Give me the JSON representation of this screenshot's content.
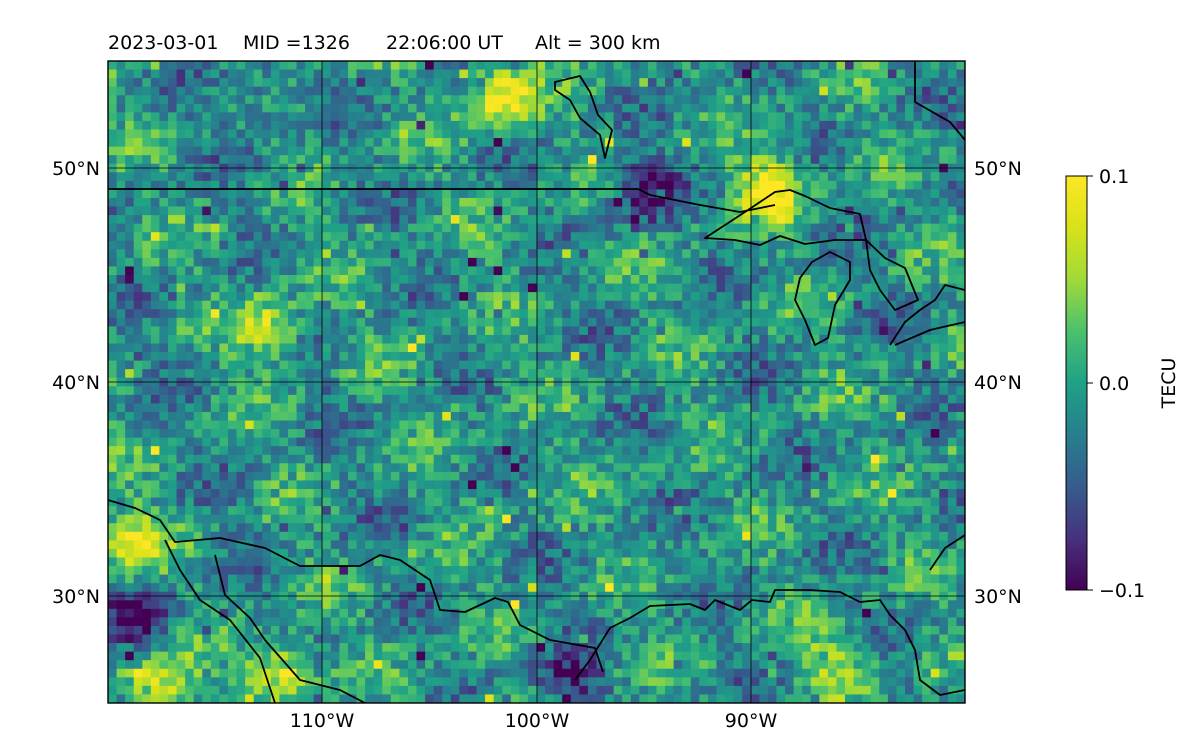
{
  "header": {
    "date": "2023-03-01",
    "mid": "MID =1326",
    "time": "22:06:00  UT",
    "alt": "Alt = 300 km"
  },
  "chart_data": {
    "type": "heatmap",
    "title": "2023-03-01  MID =1326    22:06:00  UT  Alt = 300 km",
    "colormap": "viridis",
    "colorbar": {
      "label": "TECU",
      "range": [
        -0.1,
        0.1
      ],
      "ticks": [
        {
          "value": 0.1,
          "label": "0.1"
        },
        {
          "value": 0.0,
          "label": "0.0"
        },
        {
          "value": -0.1,
          "label": "−0.1"
        }
      ]
    },
    "lon_range": [
      -120,
      -80
    ],
    "lat_range": [
      25,
      55
    ],
    "lon_ticks": [
      {
        "value": -110,
        "label": "110°W"
      },
      {
        "value": -100,
        "label": "100°W"
      },
      {
        "value": -90,
        "label": "90°W"
      }
    ],
    "lat_ticks": [
      {
        "value": 50,
        "label": "50°N"
      },
      {
        "value": 40,
        "label": "40°N"
      },
      {
        "value": 30,
        "label": "30°N"
      }
    ],
    "grid": true,
    "base_value": -0.01,
    "features": [
      {
        "name": "northern-plains-high",
        "lon": -101.5,
        "lat": 53.5,
        "value": 0.1
      },
      {
        "name": "upper-midwest-high",
        "lon": -89,
        "lat": 49,
        "value": 0.1
      },
      {
        "name": "baja-high",
        "lon": -117.5,
        "lat": 26,
        "value": 0.09
      },
      {
        "name": "west-coast-high",
        "lon": -119,
        "lat": 32.5,
        "value": 0.08
      },
      {
        "name": "southwest-high",
        "lon": -112,
        "lat": 26.5,
        "value": 0.09
      },
      {
        "name": "nevada-high",
        "lon": -112.5,
        "lat": 42.5,
        "value": 0.07
      },
      {
        "name": "gulf-coast-high",
        "lon": -86,
        "lat": 27,
        "value": 0.06
      },
      {
        "name": "mexico-low",
        "lon": -98.5,
        "lat": 26,
        "value": -0.08
      },
      {
        "name": "pacific-low",
        "lon": -118.5,
        "lat": 29,
        "value": -0.09
      },
      {
        "name": "lake-superior-low",
        "lon": -95,
        "lat": 49,
        "value": -0.09
      },
      {
        "name": "canada-west-low",
        "lon": -113,
        "lat": 53.5,
        "value": -0.05
      }
    ]
  }
}
